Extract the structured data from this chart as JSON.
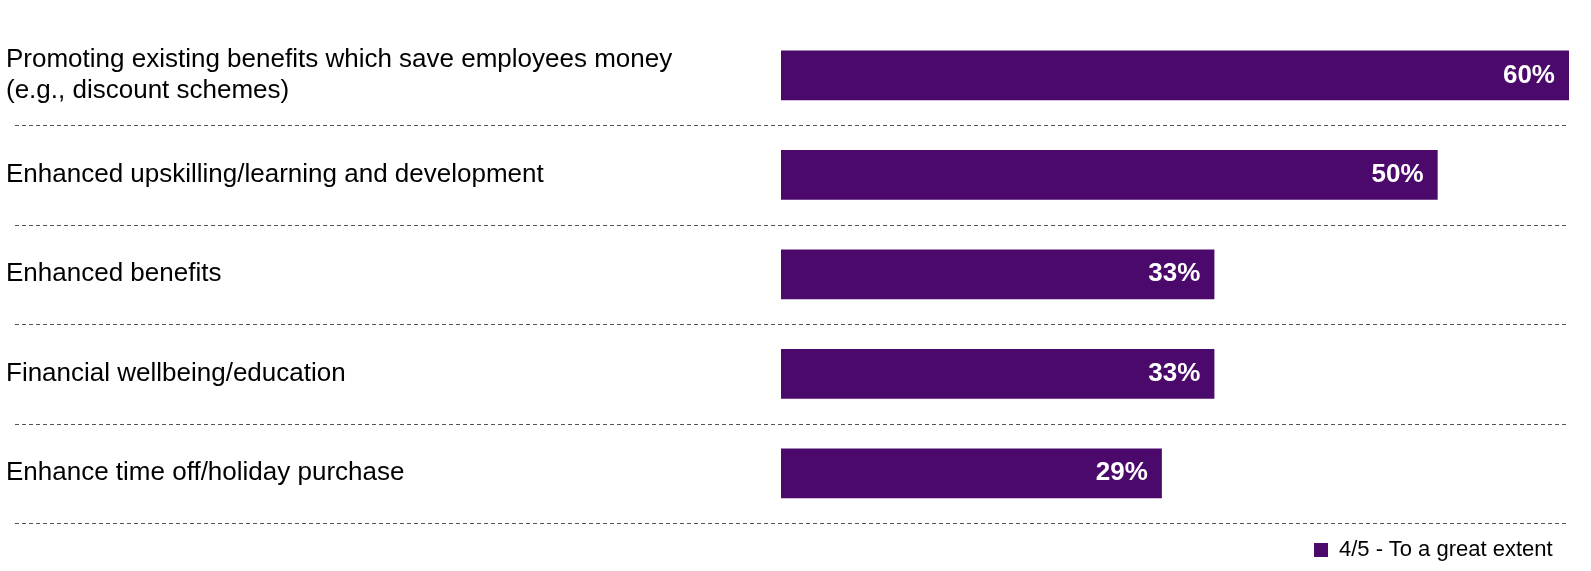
{
  "chart_data": {
    "type": "bar",
    "orientation": "horizontal",
    "categories": [
      "Promoting existing benefits which save employees money (e.g., discount schemes)",
      "Enhanced upskilling/learning and development",
      "Enhanced benefits",
      "Financial wellbeing/education",
      "Enhance time off/holiday purchase"
    ],
    "series": [
      {
        "name": "4/5 - To a great extent",
        "color": "#4b0a6b",
        "values": [
          60,
          50,
          33,
          33,
          29
        ],
        "value_labels": [
          "60%",
          "50%",
          "33%",
          "33%",
          "29%"
        ]
      }
    ],
    "grid": "y",
    "legend": "bottom right",
    "tick_labels": "y"
  }
}
